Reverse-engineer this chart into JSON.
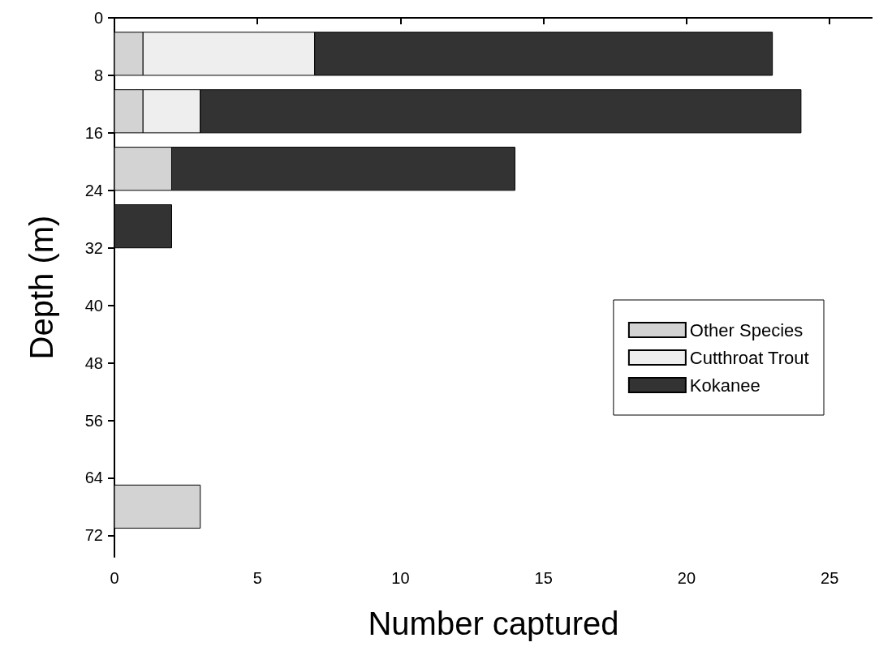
{
  "chart_data": {
    "type": "bar",
    "orientation": "horizontal",
    "stacked": true,
    "xlabel": "Number captured",
    "ylabel": "Depth (m)",
    "x": [
      5,
      13,
      21,
      29,
      68
    ],
    "series": [
      {
        "name": "Other Species",
        "color": "#d3d3d3",
        "values": [
          1,
          1,
          2,
          0,
          3
        ]
      },
      {
        "name": "Cutthroat Trout",
        "color": "#eeeeee",
        "values": [
          6,
          2,
          0,
          0,
          0
        ]
      },
      {
        "name": "Kokanee",
        "color": "#333333",
        "values": [
          16,
          21,
          12,
          2,
          0
        ]
      }
    ],
    "xlim": [
      0,
      26.5
    ],
    "xticks": [
      0,
      5,
      10,
      15,
      20,
      25
    ],
    "ylim": [
      75,
      0
    ],
    "yticks": [
      0,
      8,
      16,
      24,
      32,
      40,
      48,
      56,
      64,
      72
    ],
    "grid": false,
    "legend": "right"
  }
}
